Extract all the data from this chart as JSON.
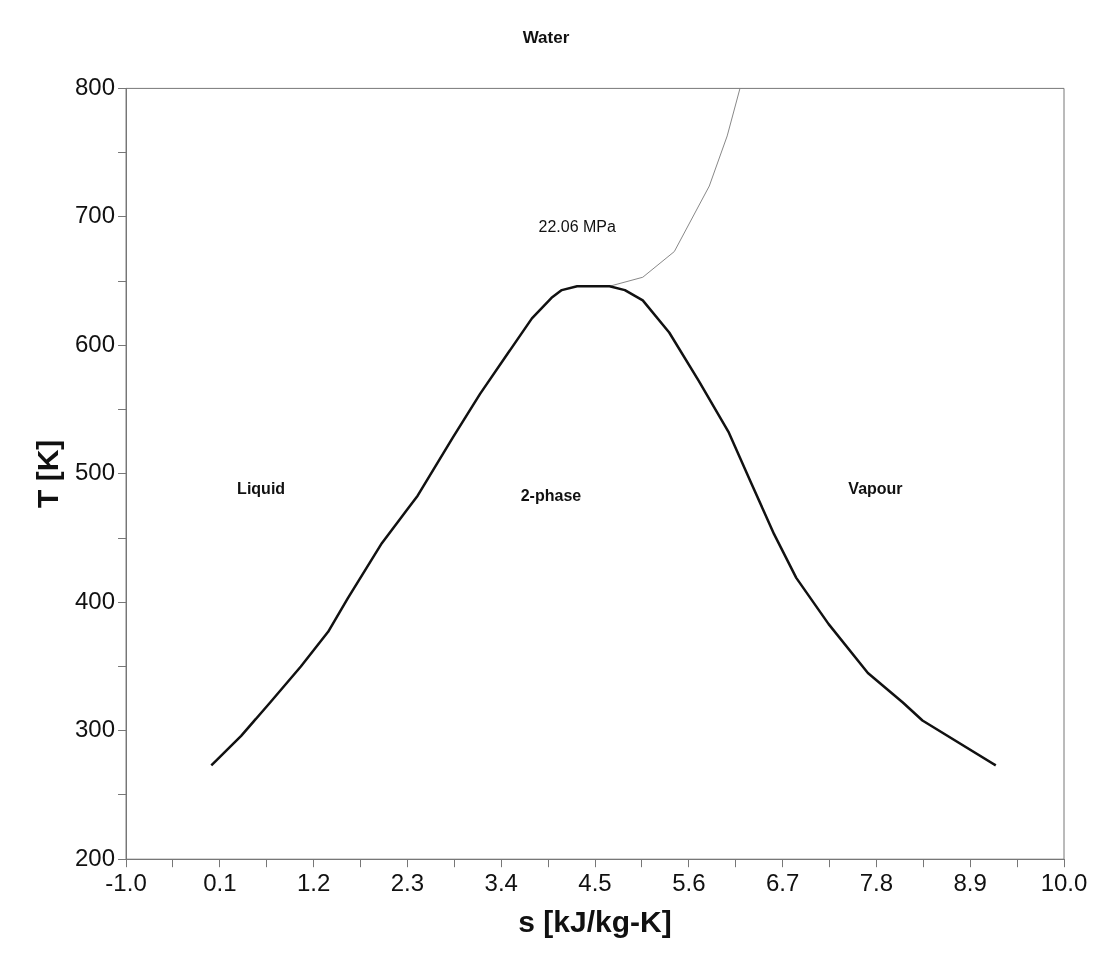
{
  "chart_data": {
    "type": "line",
    "title": "Water",
    "xlabel": "s [kJ/kg-K]",
    "ylabel": "T [K]",
    "xlim": [
      -1,
      10
    ],
    "ylim": [
      200,
      800
    ],
    "xticks": [
      {
        "value": -1,
        "label": "-1.0"
      },
      {
        "value": -0.45,
        "label": null
      },
      {
        "value": 0.1,
        "label": "0.1"
      },
      {
        "value": 0.65,
        "label": null
      },
      {
        "value": 1.2,
        "label": "1.2"
      },
      {
        "value": 1.75,
        "label": null
      },
      {
        "value": 2.3,
        "label": "2.3"
      },
      {
        "value": 2.85,
        "label": null
      },
      {
        "value": 3.4,
        "label": "3.4"
      },
      {
        "value": 3.95,
        "label": null
      },
      {
        "value": 4.5,
        "label": "4.5"
      },
      {
        "value": 5.05,
        "label": null
      },
      {
        "value": 5.6,
        "label": "5.6"
      },
      {
        "value": 6.15,
        "label": null
      },
      {
        "value": 6.7,
        "label": "6.7"
      },
      {
        "value": 7.25,
        "label": null
      },
      {
        "value": 7.8,
        "label": "7.8"
      },
      {
        "value": 8.35,
        "label": null
      },
      {
        "value": 8.9,
        "label": "8.9"
      },
      {
        "value": 9.45,
        "label": null
      },
      {
        "value": 10,
        "label": "10.0"
      }
    ],
    "yticks": [
      200,
      {
        "value": 250,
        "label": null
      },
      300,
      {
        "value": 350,
        "label": null
      },
      400,
      {
        "value": 450,
        "label": null
      },
      500,
      {
        "value": 550,
        "label": null
      },
      600,
      {
        "value": 650,
        "label": null
      },
      700,
      {
        "value": 750,
        "label": null
      },
      800
    ],
    "grid": false,
    "legend": false,
    "marker": "none",
    "line_style": "solid",
    "series": [
      {
        "color": "#111111",
        "x": [
          0.0,
          0.35,
          0.69,
          1.05,
          1.37,
          1.6,
          2.0,
          2.42,
          2.83,
          3.15,
          3.47,
          3.76,
          3.99,
          4.11,
          4.29,
          4.67,
          4.85,
          5.06,
          5.37,
          5.72,
          6.07,
          6.33,
          6.6,
          6.86,
          7.24,
          7.7,
          8.11,
          8.34,
          9.2
        ],
        "values": [
          273,
          296,
          322,
          350,
          377,
          403,
          446,
          483,
          528,
          562,
          593,
          621,
          637,
          643,
          646,
          646,
          643,
          635,
          610,
          572,
          532,
          493,
          453,
          419,
          383,
          345,
          322,
          308,
          273
        ]
      },
      {
        "color": "#888888",
        "x": [
          4.67,
          5.06,
          5.43,
          5.84,
          6.05,
          6.2
        ],
        "values": [
          646,
          653,
          673,
          724,
          763,
          800
        ]
      }
    ],
    "annotations": [
      "22.06 MPa",
      "Liquid",
      "2-phase",
      "Vapour"
    ]
  }
}
